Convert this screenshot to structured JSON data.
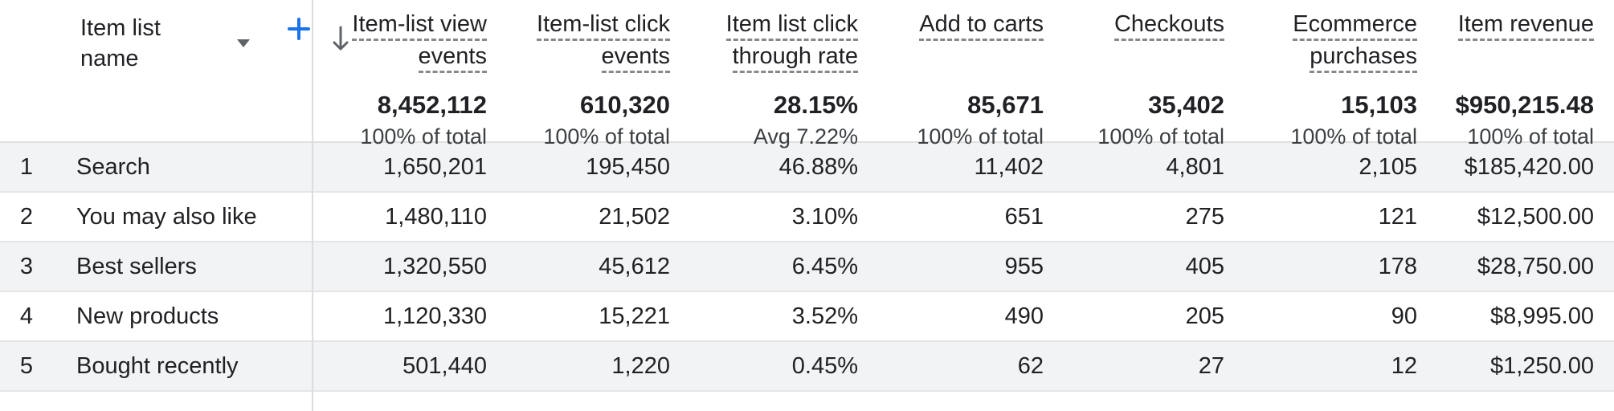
{
  "table": {
    "dimension_header": {
      "label": "Item list name",
      "dropdown_icon": "caret-down-icon",
      "add_button_icon": "plus-icon"
    },
    "sort": {
      "icon": "arrow-down-icon",
      "sorted_column": "Item-list view events",
      "direction": "descending"
    },
    "columns": [
      {
        "label": "Item-list view events",
        "lines": [
          "Item-list view",
          "events"
        ],
        "total": "8,452,112",
        "subtotal": "100% of total"
      },
      {
        "label": "Item-list click events",
        "lines": [
          "Item-list click",
          "events"
        ],
        "total": "610,320",
        "subtotal": "100% of total"
      },
      {
        "label": "Item list click through rate",
        "lines": [
          "Item list click",
          "through rate"
        ],
        "total": "28.15%",
        "subtotal": "Avg 7.22%"
      },
      {
        "label": "Add to carts",
        "lines": [
          "Add to carts"
        ],
        "total": "85,671",
        "subtotal": "100% of total"
      },
      {
        "label": "Checkouts",
        "lines": [
          "Checkouts"
        ],
        "total": "35,402",
        "subtotal": "100% of total"
      },
      {
        "label": "Ecommerce purchases",
        "lines": [
          "Ecommerce",
          "purchases"
        ],
        "total": "15,103",
        "subtotal": "100% of total"
      },
      {
        "label": "Item revenue",
        "lines": [
          "Item revenue"
        ],
        "total": "$950,215.48",
        "subtotal": "100% of total"
      }
    ],
    "rows": [
      {
        "index": "1",
        "name": "Search",
        "values": [
          "1,650,201",
          "195,450",
          "46.88%",
          "11,402",
          "4,801",
          "2,105",
          "$185,420.00"
        ]
      },
      {
        "index": "2",
        "name": "You may also like",
        "values": [
          "1,480,110",
          "21,502",
          "3.10%",
          "651",
          "275",
          "121",
          "$12,500.00"
        ]
      },
      {
        "index": "3",
        "name": "Best sellers",
        "values": [
          "1,320,550",
          "45,612",
          "6.45%",
          "955",
          "405",
          "178",
          "$28,750.00"
        ]
      },
      {
        "index": "4",
        "name": "New products",
        "values": [
          "1,120,330",
          "15,221",
          "3.52%",
          "490",
          "205",
          "90",
          "$8,995.00"
        ]
      },
      {
        "index": "5",
        "name": "Bought recently",
        "values": [
          "501,440",
          "1,220",
          "0.45%",
          "62",
          "27",
          "12",
          "$1,250.00"
        ]
      }
    ],
    "colors": {
      "accent_blue": "#1a73e8",
      "stripe_gray": "#f1f3f4",
      "row_border": "#e4e5e7",
      "column_divider": "#dadce0",
      "text_primary": "#202124",
      "text_secondary": "#3c4043",
      "icon_gray": "#5f6368",
      "dashed_underline": "#85898e"
    }
  }
}
